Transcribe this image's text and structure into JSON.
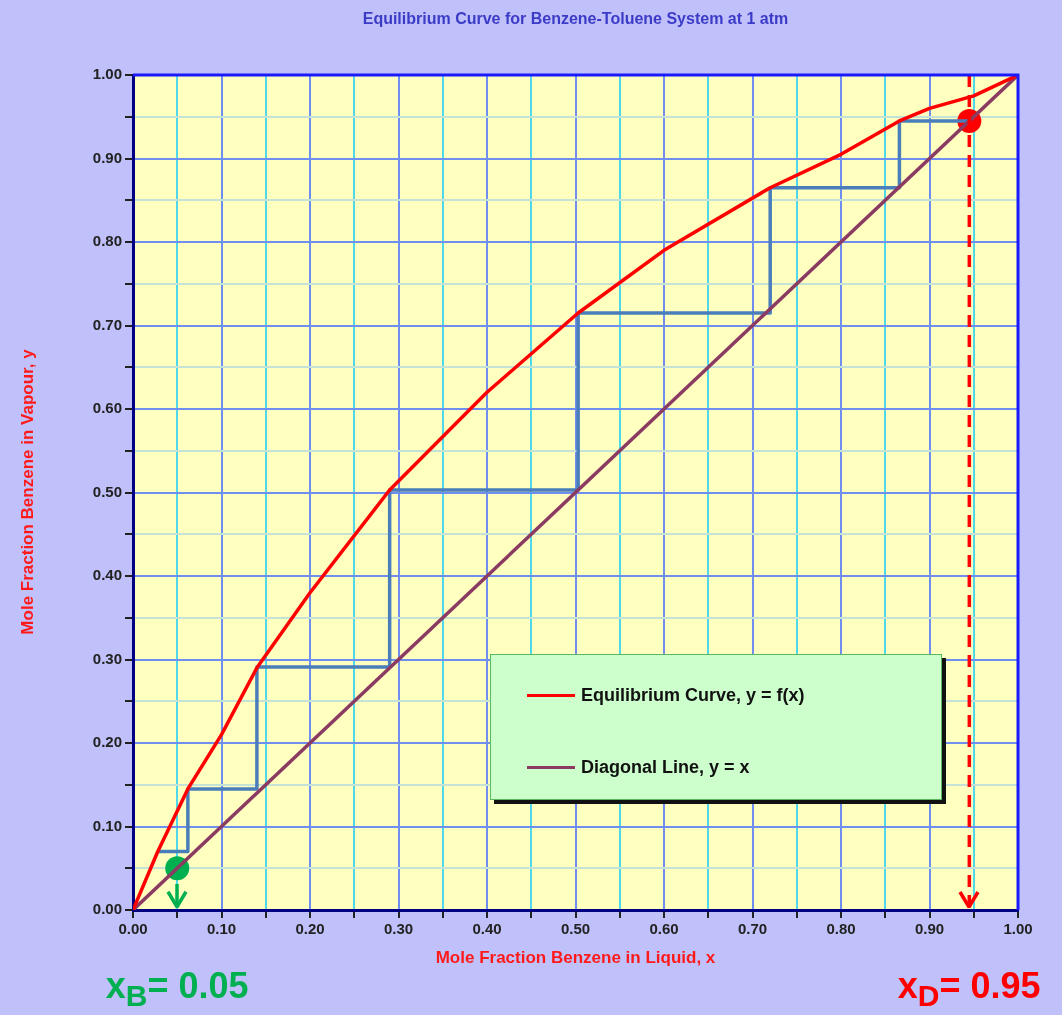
{
  "chart_data": {
    "type": "line",
    "title": "Equilibrium Curve for Benzene-Toluene System at 1 atm",
    "xlabel": "Mole Fraction Benzene in Liquid, x",
    "ylabel": "Mole Fraction Benzene in Vapour, y",
    "xlim": [
      0,
      1
    ],
    "ylim": [
      0,
      1
    ],
    "xticks": [
      {
        "value": 0,
        "label": "0.00"
      },
      {
        "value": 0.05,
        "label": null
      },
      {
        "value": 0.1,
        "label": "0.10"
      },
      {
        "value": 0.15,
        "label": null
      },
      {
        "value": 0.2,
        "label": "0.20"
      },
      {
        "value": 0.25,
        "label": null
      },
      {
        "value": 0.3,
        "label": "0.30"
      },
      {
        "value": 0.35,
        "label": null
      },
      {
        "value": 0.4,
        "label": "0.40"
      },
      {
        "value": 0.45,
        "label": null
      },
      {
        "value": 0.5,
        "label": "0.50"
      },
      {
        "value": 0.55,
        "label": null
      },
      {
        "value": 0.6,
        "label": "0.60"
      },
      {
        "value": 0.65,
        "label": null
      },
      {
        "value": 0.7,
        "label": "0.70"
      },
      {
        "value": 0.75,
        "label": null
      },
      {
        "value": 0.8,
        "label": "0.80"
      },
      {
        "value": 0.85,
        "label": null
      },
      {
        "value": 0.9,
        "label": "0.90"
      },
      {
        "value": 0.95,
        "label": null
      },
      {
        "value": 1,
        "label": "1.00"
      }
    ],
    "yticks": [
      {
        "value": 0,
        "label": "0.00"
      },
      {
        "value": 0.05,
        "label": null
      },
      {
        "value": 0.1,
        "label": "0.10"
      },
      {
        "value": 0.15,
        "label": null
      },
      {
        "value": 0.2,
        "label": "0.20"
      },
      {
        "value": 0.25,
        "label": null
      },
      {
        "value": 0.3,
        "label": "0.30"
      },
      {
        "value": 0.35,
        "label": null
      },
      {
        "value": 0.4,
        "label": "0.40"
      },
      {
        "value": 0.45,
        "label": null
      },
      {
        "value": 0.5,
        "label": "0.50"
      },
      {
        "value": 0.55,
        "label": null
      },
      {
        "value": 0.6,
        "label": "0.60"
      },
      {
        "value": 0.65,
        "label": null
      },
      {
        "value": 0.7,
        "label": "0.70"
      },
      {
        "value": 0.75,
        "label": null
      },
      {
        "value": 0.8,
        "label": "0.80"
      },
      {
        "value": 0.85,
        "label": null
      },
      {
        "value": 0.9,
        "label": "0.90"
      },
      {
        "value": 0.95,
        "label": null
      },
      {
        "value": 1,
        "label": "1.00"
      }
    ],
    "grid": true,
    "legend": "bottom right",
    "marker": "none",
    "line_style": "solid",
    "series": [
      {
        "name": "Equilibrium Curve, y = f(x)",
        "color": "#ff0000",
        "x": [
          0,
          0.028,
          0.062,
          0.1,
          0.14,
          0.2,
          0.29,
          0.4,
          0.503,
          0.6,
          0.72,
          0.8,
          0.866,
          0.9,
          0.95,
          1
        ],
        "values": [
          0,
          0.07,
          0.145,
          0.21,
          0.29,
          0.38,
          0.503,
          0.62,
          0.715,
          0.79,
          0.865,
          0.905,
          0.945,
          0.96,
          0.975,
          1
        ]
      },
      {
        "name": "Diagonal Line, y = x",
        "color": "#8b3a62",
        "x": [
          0,
          1
        ],
        "values": [
          0,
          1
        ]
      },
      {
        "color": "#4a7ebb",
        "x": [
          0.945,
          0.866,
          0.866,
          0.72,
          0.72,
          0.503,
          0.503,
          0.29,
          0.29,
          0.14,
          0.14,
          0.062,
          0.062,
          0.028
        ],
        "values": [
          0.945,
          0.945,
          0.865,
          0.865,
          0.715,
          0.715,
          0.503,
          0.503,
          0.291,
          0.291,
          0.145,
          0.145,
          0.07,
          0.07
        ]
      },
      {
        "type": "scatter",
        "marker": "circle",
        "color": "#00b050",
        "x": [
          0.05
        ],
        "values": [
          0.05
        ]
      },
      {
        "type": "scatter",
        "marker": "circle",
        "color": "#ff0000",
        "x": [
          0.945
        ],
        "values": [
          0.945
        ]
      }
    ],
    "ref_lines": [
      {
        "axis": "x",
        "value": 0.945,
        "color": "#ff0000",
        "line_style": "dashed"
      }
    ],
    "annotations": [
      "x$_{B}$= 0.05",
      "x$_{D}$= 0.95"
    ]
  }
}
